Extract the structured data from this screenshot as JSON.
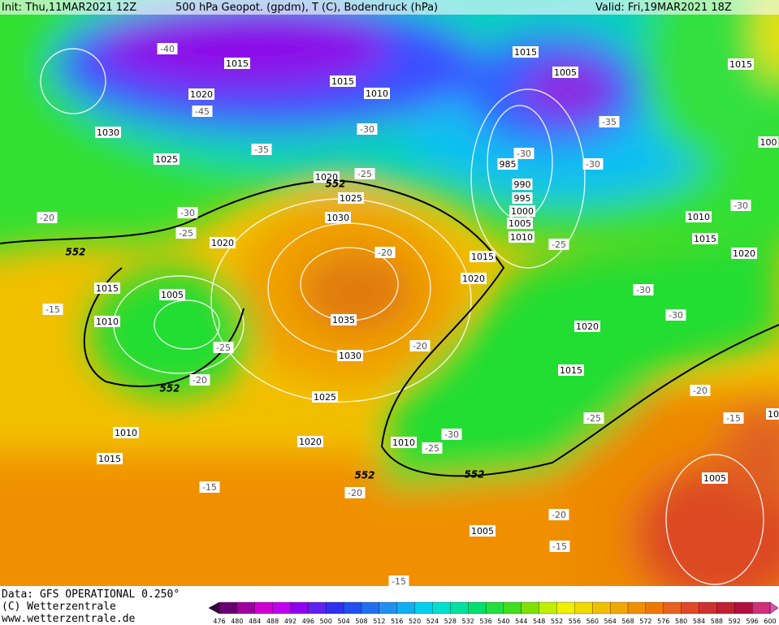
{
  "header": {
    "init": "Init: Thu,11MAR2021 12Z",
    "title": "500 hPa Geopot. (gpdm), T (C), Bodendruck (hPa)",
    "valid": "Valid: Fri,19MAR2021 18Z"
  },
  "map": {
    "isobar_labels": [
      "1015",
      "1020",
      "1030",
      "1025",
      "1015",
      "1010",
      "1015",
      "1005",
      "1015",
      "985",
      "990",
      "995",
      "1000",
      "1005",
      "1010",
      "1020",
      "1025",
      "1030",
      "1020",
      "1015",
      "1020",
      "1015",
      "1005",
      "1010",
      "1035",
      "1030",
      "1020",
      "1015",
      "1025",
      "1010",
      "1020",
      "1010",
      "1015",
      "1005",
      "1005",
      "1010",
      "1015",
      "1020",
      "100",
      "10"
    ],
    "temperature_labels": [
      "-40",
      "-45",
      "-35",
      "-30",
      "-25",
      "-30",
      "-25",
      "-20",
      "-15",
      "-35",
      "-30",
      "-30",
      "-30",
      "-25",
      "-20",
      "-30",
      "-30",
      "-25",
      "-20",
      "-20",
      "-20",
      "-15",
      "-25",
      "-30",
      "-25",
      "-15",
      "-20",
      "-20",
      "-15",
      "-15"
    ],
    "height_labels": [
      "552",
      "552",
      "552",
      "552",
      "552"
    ]
  },
  "colorbar": {
    "labels": [
      476,
      480,
      484,
      488,
      492,
      496,
      500,
      504,
      508,
      512,
      516,
      520,
      524,
      528,
      532,
      536,
      540,
      544,
      548,
      552,
      556,
      560,
      564,
      568,
      572,
      576,
      580,
      584,
      588,
      592,
      596,
      600
    ]
  },
  "footer": {
    "data": "Data: GFS OPERATIONAL 0.250°",
    "copyright": "(C) Wetterzentrale",
    "url": "www.wetterzentrale.de"
  }
}
